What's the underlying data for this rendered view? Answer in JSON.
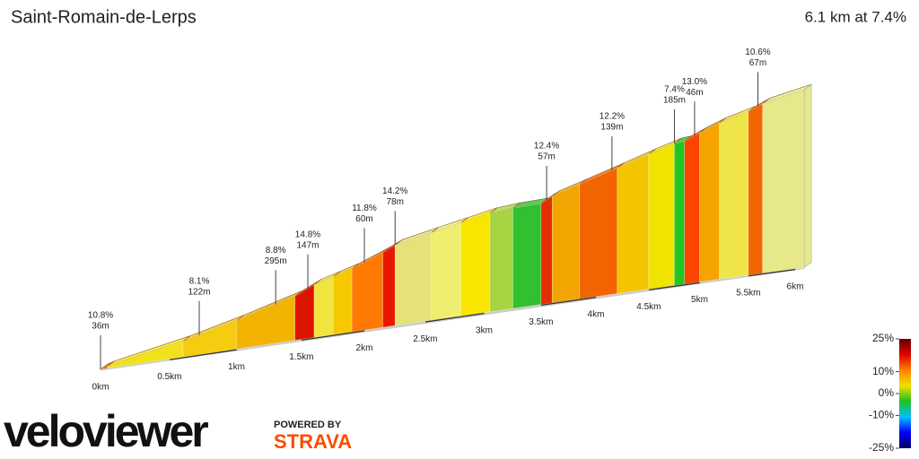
{
  "chart_data": {
    "type": "profile",
    "title": "Saint-Romain-de-Lerps",
    "subtitle": "6.1 km at 7.4%",
    "x": [
      0,
      0.05,
      0.6,
      1.0,
      1.45,
      1.6,
      1.75,
      1.9,
      2.15,
      2.25,
      2.55,
      2.8,
      3.05,
      3.25,
      3.5,
      3.6,
      3.85,
      4.2,
      4.5,
      4.75,
      4.85,
      5.0,
      5.2,
      5.5,
      5.65,
      6.1
    ],
    "elevation": [
      0,
      5,
      40,
      72,
      112,
      134,
      147,
      160,
      190,
      204,
      222,
      236,
      250,
      254,
      256,
      270,
      290,
      318,
      342,
      360,
      362,
      378,
      396,
      415,
      430,
      451
    ],
    "colors": [
      "#e85a00",
      "#f2e21a",
      "#f5cc10",
      "#f2b400",
      "#dd1500",
      "#f0e440",
      "#f5c800",
      "#ff7800",
      "#e81800",
      "#e6e27a",
      "#eeee70",
      "#f8e600",
      "#a8d444",
      "#30c030",
      "#e43000",
      "#f2a400",
      "#f26400",
      "#f5c400",
      "#f0e400",
      "#22c422",
      "#ff4400",
      "#f5a400",
      "#efe44a",
      "#f26600",
      "#e6e88a"
    ],
    "annotations": [
      {
        "x": 0,
        "grade": "10.8%",
        "length": "36m"
      },
      {
        "x": 0.72,
        "grade": "8.1%",
        "length": "122m"
      },
      {
        "x": 1.3,
        "grade": "8.8%",
        "length": "295m"
      },
      {
        "x": 1.55,
        "grade": "14.8%",
        "length": "147m"
      },
      {
        "x": 2.0,
        "grade": "11.8%",
        "length": "60m"
      },
      {
        "x": 2.25,
        "grade": "14.2%",
        "length": "78m"
      },
      {
        "x": 3.55,
        "grade": "12.4%",
        "length": "57m"
      },
      {
        "x": 4.15,
        "grade": "12.2%",
        "length": "139m"
      },
      {
        "x": 4.75,
        "grade": "7.4%",
        "length": "185m"
      },
      {
        "x": 4.95,
        "grade": "13.0%",
        "length": "46m"
      },
      {
        "x": 5.6,
        "grade": "10.6%",
        "length": "67m"
      }
    ],
    "xlim": [
      0,
      6.1
    ],
    "xticks": [
      {
        "value": 0,
        "label": "0km"
      },
      {
        "value": 0.5,
        "label": "0.5km"
      },
      {
        "value": 1,
        "label": "1km"
      },
      {
        "value": 1.5,
        "label": "1.5km"
      },
      {
        "value": 2,
        "label": "2km"
      },
      {
        "value": 2.5,
        "label": "2.5km"
      },
      {
        "value": 3,
        "label": "3km"
      },
      {
        "value": 3.5,
        "label": "3.5km"
      },
      {
        "value": 4,
        "label": "4km"
      },
      {
        "value": 4.5,
        "label": "4.5km"
      },
      {
        "value": 5,
        "label": "5km"
      },
      {
        "value": 5.5,
        "label": "5.5km"
      },
      {
        "value": 6,
        "label": "6km"
      }
    ],
    "colorbar": {
      "lim": [
        -25,
        25
      ],
      "ticks": [
        {
          "value": 25,
          "label": "25%"
        },
        {
          "value": 10,
          "label": "10%"
        },
        {
          "value": 0,
          "label": "0%"
        },
        {
          "value": -10,
          "label": "-10%"
        },
        {
          "value": -25,
          "label": "-25%"
        }
      ],
      "colors": [
        "#000066",
        "#0000ff",
        "#00c0ff",
        "#20c020",
        "#f0e000",
        "#ff8000",
        "#e00000",
        "#600000"
      ]
    },
    "branding": {
      "logo": "veloviewer",
      "powered": "POWERED BY",
      "strava": "STRAVA"
    }
  }
}
